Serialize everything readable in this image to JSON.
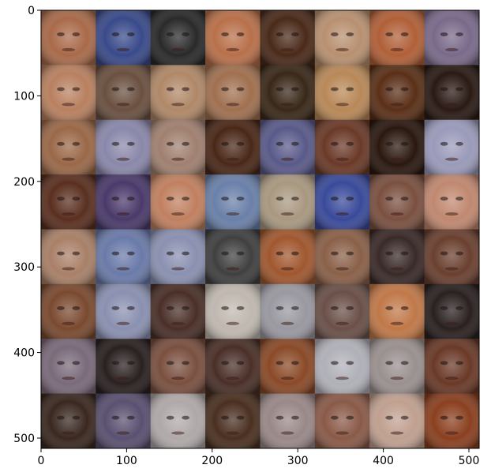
{
  "figure": {
    "x_ticks": [
      "0",
      "100",
      "200",
      "300",
      "400",
      "500"
    ],
    "y_ticks": [
      "0",
      "100",
      "200",
      "300",
      "400",
      "500"
    ],
    "x_range": [
      0,
      512
    ],
    "y_range": [
      0,
      512
    ],
    "grid": {
      "rows": 8,
      "cols": 8
    },
    "tiles": [
      [
        "#a86a4a",
        "#3a4a8a",
        "#2a2a2a",
        "#b8704a",
        "#4a2a1a",
        "#b89070",
        "#b06038",
        "#7a6a8a"
      ],
      [
        "#b88060",
        "#6a5040",
        "#b08868",
        "#a07050",
        "#3a2818",
        "#b88858",
        "#5a3018",
        "#2a1a14"
      ],
      [
        "#9a6848",
        "#8a88aa",
        "#a08070",
        "#4a2818",
        "#5a5a8a",
        "#6a3a28",
        "#2a1810",
        "#9a9aba"
      ],
      [
        "#5a3020",
        "#4a3a6a",
        "#c08060",
        "#6a80a8",
        "#a89880",
        "#3a4a9a",
        "#7a5040",
        "#c08870"
      ],
      [
        "#a88068",
        "#6a7aa8",
        "#8a90b0",
        "#404040",
        "#a05830",
        "#8a6048",
        "#3a2a28",
        "#6a4030"
      ],
      [
        "#7a4a30",
        "#8a90b0",
        "#4a3028",
        "#c0b8b0",
        "#9a98a0",
        "#6a5048",
        "#c07848",
        "#2a2020"
      ],
      [
        "#7a6a7a",
        "#2a2020",
        "#7a5040",
        "#4a3028",
        "#8a4a28",
        "#b0b0b8",
        "#9a9090",
        "#6a3a28"
      ],
      [
        "#3a2820",
        "#5a5070",
        "#b0a8a8",
        "#4a3020",
        "#9a8888",
        "#8a5a48",
        "#c0a090",
        "#8a4020"
      ]
    ]
  }
}
